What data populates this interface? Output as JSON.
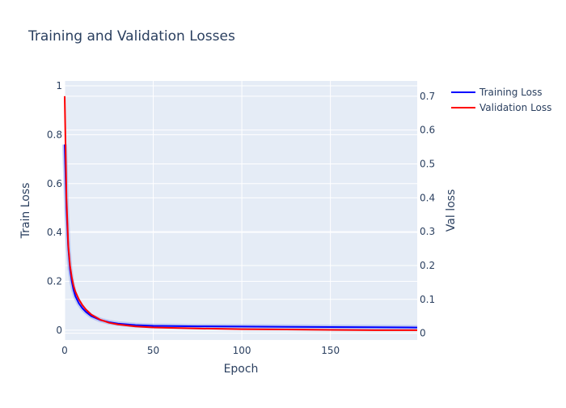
{
  "chart_data": {
    "type": "line",
    "title": "Training and Validation Losses",
    "xlabel": "Epoch",
    "ylabel_left": "Train Loss",
    "ylabel_right": "Val loss",
    "xlim": [
      0,
      199
    ],
    "ylim_left": [
      -0.04,
      1.02
    ],
    "ylim_right": [
      -0.02,
      0.745
    ],
    "xticks": [
      0,
      50,
      100,
      150
    ],
    "yticks_left": [
      0,
      0.2,
      0.4,
      0.6,
      0.8,
      1
    ],
    "yticks_right": [
      0,
      0.1,
      0.2,
      0.3,
      0.4,
      0.5,
      0.6,
      0.7
    ],
    "legend_position": "top-right",
    "grid": true,
    "series": [
      {
        "name": "Training Loss",
        "axis": "left",
        "color": "#0000ff",
        "x": [
          0,
          1,
          2,
          3,
          4,
          5,
          6,
          8,
          10,
          12,
          15,
          20,
          25,
          30,
          40,
          50,
          75,
          100,
          125,
          150,
          175,
          199
        ],
        "y": [
          0.76,
          0.5,
          0.34,
          0.25,
          0.2,
          0.165,
          0.14,
          0.11,
          0.09,
          0.075,
          0.058,
          0.042,
          0.033,
          0.027,
          0.021,
          0.018,
          0.016,
          0.015,
          0.014,
          0.013,
          0.012,
          0.011
        ]
      },
      {
        "name": "Validation Loss",
        "axis": "right",
        "color": "#ff0000",
        "x": [
          0,
          1,
          2,
          3,
          4,
          5,
          6,
          8,
          10,
          12,
          15,
          20,
          25,
          30,
          40,
          50,
          75,
          100,
          125,
          150,
          175,
          199
        ],
        "y": [
          0.7,
          0.4,
          0.26,
          0.2,
          0.165,
          0.14,
          0.123,
          0.1,
          0.083,
          0.07,
          0.055,
          0.04,
          0.031,
          0.026,
          0.02,
          0.017,
          0.014,
          0.012,
          0.011,
          0.01,
          0.009,
          0.009
        ]
      }
    ]
  }
}
